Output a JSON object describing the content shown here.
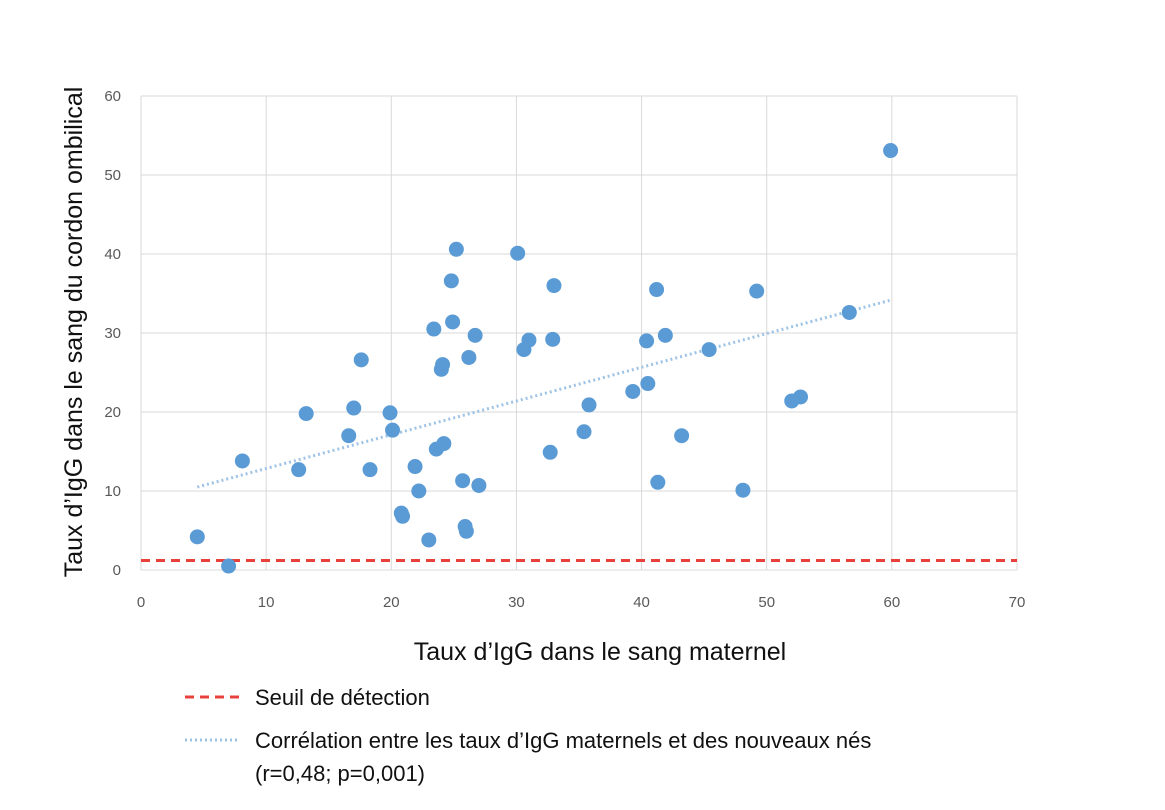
{
  "chart_data": {
    "type": "scatter",
    "title": "",
    "xlabel": "Taux d’IgG dans le sang maternel",
    "ylabel": "Taux d’IgG dans le sang du cordon ombilical",
    "xlim": [
      0,
      70
    ],
    "ylim": [
      0,
      60
    ],
    "xticks": [
      0,
      10,
      20,
      30,
      40,
      50,
      60,
      70
    ],
    "yticks": [
      0,
      10,
      20,
      30,
      40,
      50,
      60
    ],
    "grid": true,
    "point_color": "#5b9bd5",
    "points": [
      {
        "x": 4.5,
        "y": 4.2
      },
      {
        "x": 7.0,
        "y": 0.5
      },
      {
        "x": 8.1,
        "y": 13.8
      },
      {
        "x": 12.6,
        "y": 12.7
      },
      {
        "x": 13.2,
        "y": 19.8
      },
      {
        "x": 16.6,
        "y": 17.0
      },
      {
        "x": 17.0,
        "y": 20.5
      },
      {
        "x": 17.6,
        "y": 26.6
      },
      {
        "x": 18.3,
        "y": 12.7
      },
      {
        "x": 19.9,
        "y": 19.9
      },
      {
        "x": 20.1,
        "y": 17.7
      },
      {
        "x": 20.8,
        "y": 7.2
      },
      {
        "x": 20.9,
        "y": 6.8
      },
      {
        "x": 21.9,
        "y": 13.1
      },
      {
        "x": 22.2,
        "y": 10.0
      },
      {
        "x": 23.0,
        "y": 3.8
      },
      {
        "x": 23.4,
        "y": 30.5
      },
      {
        "x": 23.6,
        "y": 15.3
      },
      {
        "x": 24.0,
        "y": 25.4
      },
      {
        "x": 24.1,
        "y": 26.0
      },
      {
        "x": 24.2,
        "y": 16.0
      },
      {
        "x": 24.8,
        "y": 36.6
      },
      {
        "x": 24.9,
        "y": 31.4
      },
      {
        "x": 25.2,
        "y": 40.6
      },
      {
        "x": 25.7,
        "y": 11.3
      },
      {
        "x": 25.9,
        "y": 5.5
      },
      {
        "x": 26.0,
        "y": 4.9
      },
      {
        "x": 26.2,
        "y": 26.9
      },
      {
        "x": 26.7,
        "y": 29.7
      },
      {
        "x": 27.0,
        "y": 10.7
      },
      {
        "x": 30.1,
        "y": 40.1
      },
      {
        "x": 30.6,
        "y": 27.9
      },
      {
        "x": 31.0,
        "y": 29.1
      },
      {
        "x": 32.7,
        "y": 14.9
      },
      {
        "x": 32.9,
        "y": 29.2
      },
      {
        "x": 33.0,
        "y": 36.0
      },
      {
        "x": 35.4,
        "y": 17.5
      },
      {
        "x": 35.8,
        "y": 20.9
      },
      {
        "x": 39.3,
        "y": 22.6
      },
      {
        "x": 40.4,
        "y": 29.0
      },
      {
        "x": 40.5,
        "y": 23.6
      },
      {
        "x": 41.2,
        "y": 35.5
      },
      {
        "x": 41.3,
        "y": 11.1
      },
      {
        "x": 41.9,
        "y": 29.7
      },
      {
        "x": 43.2,
        "y": 17.0
      },
      {
        "x": 45.4,
        "y": 27.9
      },
      {
        "x": 48.1,
        "y": 10.1
      },
      {
        "x": 49.2,
        "y": 35.3
      },
      {
        "x": 52.0,
        "y": 21.4
      },
      {
        "x": 52.7,
        "y": 21.9
      },
      {
        "x": 56.6,
        "y": 32.6
      },
      {
        "x": 59.9,
        "y": 53.1
      }
    ],
    "threshold": {
      "y": 1.2,
      "color": "#e8413c"
    },
    "trendline": {
      "x_start": 4.5,
      "y_start": 10.5,
      "x_end": 60,
      "y_end": 34.2,
      "color": "#9dc3e6"
    },
    "legend": {
      "placement": "bottom-left",
      "items": [
        {
          "label": "Seuil de détection",
          "style": "dashed",
          "color": "#e8413c"
        },
        {
          "label": "Corrélation entre les taux d’IgG maternels et des nouveaux nés",
          "label_line2": "(r=0,48; p=0,001)",
          "style": "dotted",
          "color": "#9dc3e6"
        }
      ]
    }
  }
}
